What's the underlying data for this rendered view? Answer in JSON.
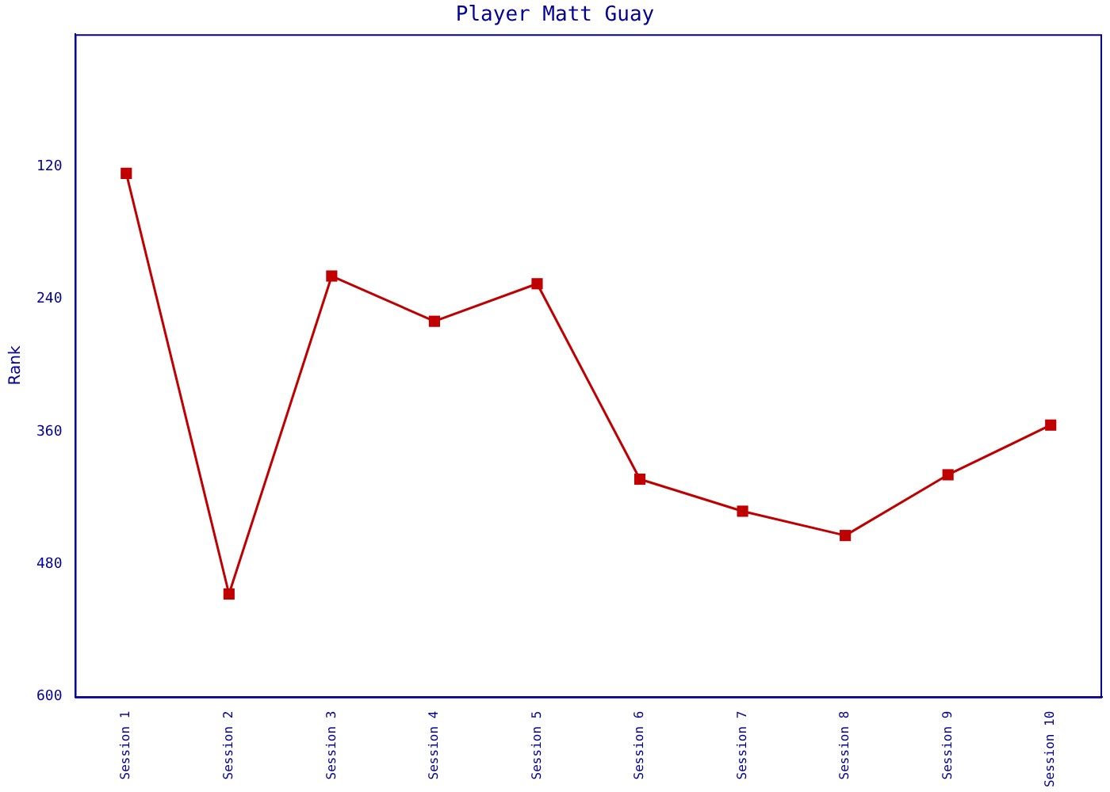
{
  "chart_data": {
    "type": "line",
    "title": "Player Matt Guay",
    "ylabel": "Rank",
    "categories": [
      "Session 1",
      "Session 2",
      "Session 3",
      "Session 4",
      "Session 5",
      "Session 6",
      "Session 7",
      "Session 8",
      "Session 9",
      "Session 10"
    ],
    "series": [
      {
        "color": "#c00000",
        "values": [
          126,
          507,
          219,
          260,
          226,
          403,
          432,
          454,
          399,
          354
        ]
      }
    ],
    "ylim": [
      600,
      0
    ],
    "yticks": [
      120,
      240,
      360,
      480,
      600
    ],
    "grid": false,
    "legend": false,
    "marker": "square",
    "line_style": "solid"
  }
}
